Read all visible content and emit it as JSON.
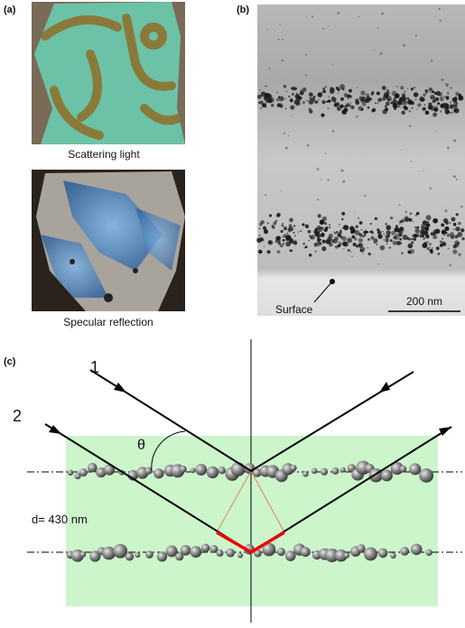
{
  "panel_a": {
    "label": "(a)",
    "top_caption": "Scattering light",
    "bottom_caption": "Specular reflection"
  },
  "panel_b": {
    "label": "(b)",
    "surface_label": "Surface",
    "scale_bar": "200 nm"
  },
  "panel_c": {
    "label": "(c)",
    "ray_1": "1",
    "ray_2": "2",
    "angle": "θ",
    "spacing": "d= 430 nm"
  }
}
